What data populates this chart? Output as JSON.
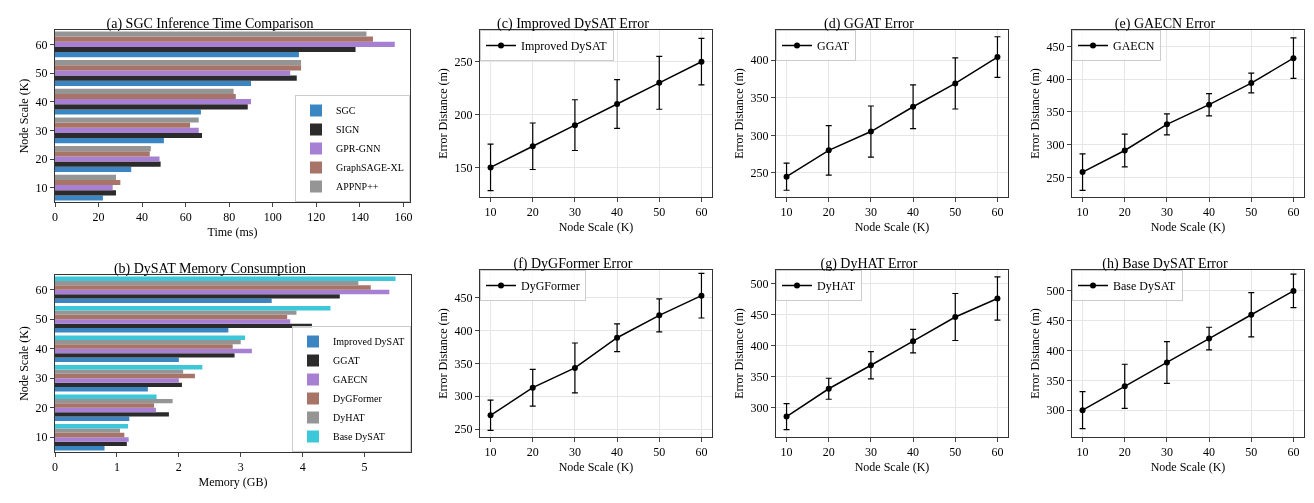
{
  "chart_data": [
    {
      "type": "bar",
      "orientation": "horizontal",
      "title": "(a) SGC Inference Time Comparison",
      "xlabel": "Time (ms)",
      "ylabel": "Node Scale (K)",
      "categories": [
        "60",
        "50",
        "40",
        "30",
        "20",
        "10"
      ],
      "xlim": [
        0,
        163
      ],
      "xticks": [
        0,
        20,
        40,
        60,
        80,
        100,
        120,
        140,
        160
      ],
      "legend": "bottom right",
      "grid": false,
      "series": [
        {
          "name": "SGC",
          "color": "#3b86c2",
          "values": [
            112,
            90,
            67,
            50,
            35,
            22
          ]
        },
        {
          "name": "SIGN",
          "color": "#2b2b2b",
          "values": [
            138,
            111,
            88.5,
            67.5,
            48.5,
            28
          ]
        },
        {
          "name": "GPR-GNN",
          "color": "#a77fd3",
          "values": [
            156,
            108,
            90,
            66,
            48,
            26.5
          ]
        },
        {
          "name": "GraphSAGE-XL",
          "color": "#a87468",
          "values": [
            146,
            113,
            83,
            62,
            43.5,
            30
          ]
        },
        {
          "name": "APPNP++",
          "color": "#959595",
          "values": [
            143,
            113,
            82,
            66,
            44,
            28
          ]
        }
      ]
    },
    {
      "type": "bar",
      "orientation": "horizontal",
      "title": "(b) DySAT Memory Consumption",
      "xlabel": "Memory (GB)",
      "ylabel": "Node Scale (K)",
      "categories": [
        "60",
        "50",
        "40",
        "30",
        "20",
        "10"
      ],
      "xlim": [
        0,
        5.75
      ],
      "xticks": [
        0,
        1,
        2,
        3,
        4,
        5
      ],
      "legend": "bottom right",
      "grid": false,
      "series": [
        {
          "name": "Improved DySAT",
          "color": "#3b86c2",
          "values": [
            3.5,
            2.8,
            2.0,
            1.5,
            1.2,
            0.8
          ]
        },
        {
          "name": "GGAT",
          "color": "#2b2b2b",
          "values": [
            4.6,
            4.15,
            2.9,
            2.05,
            1.84,
            1.16
          ]
        },
        {
          "name": "GAECN",
          "color": "#a77fd3",
          "values": [
            5.4,
            3.8,
            3.18,
            2.0,
            1.63,
            1.19
          ]
        },
        {
          "name": "DyGFormer",
          "color": "#a87468",
          "values": [
            5.1,
            3.75,
            2.87,
            2.26,
            1.6,
            1.12
          ]
        },
        {
          "name": "DyHAT",
          "color": "#959595",
          "values": [
            4.9,
            3.9,
            3.0,
            2.07,
            1.9,
            1.05
          ]
        },
        {
          "name": "Base DySAT",
          "color": "#3cc8d8",
          "values": [
            5.5,
            4.45,
            3.07,
            2.38,
            1.64,
            1.18
          ]
        }
      ]
    },
    {
      "type": "line",
      "title": "(c) Improved DySAT Error",
      "xlabel": "Node Scale (K)",
      "ylabel": "Error Distance (m)",
      "x": [
        10,
        20,
        30,
        40,
        50,
        60
      ],
      "xlim": [
        7.5,
        62.5
      ],
      "xticks": [
        10,
        20,
        30,
        40,
        50,
        60
      ],
      "ylim": [
        122,
        280
      ],
      "yticks": [
        150,
        200,
        250
      ],
      "grid": true,
      "legend": "top left",
      "marker": "circle",
      "line_style": "solid",
      "series": [
        {
          "name": "Improved DySAT",
          "color": "#000000",
          "values": [
            150,
            170,
            190,
            210,
            230,
            250
          ],
          "errors": [
            22,
            22,
            24,
            23,
            25,
            22
          ]
        }
      ]
    },
    {
      "type": "line",
      "title": "(d) GGAT Error",
      "xlabel": "Node Scale (K)",
      "ylabel": "Error Distance (m)",
      "x": [
        10,
        20,
        30,
        40,
        50,
        60
      ],
      "xlim": [
        7.5,
        62.5
      ],
      "xticks": [
        10,
        20,
        30,
        40,
        50,
        60
      ],
      "ylim": [
        218,
        440
      ],
      "yticks": [
        250,
        300,
        350,
        400
      ],
      "grid": true,
      "legend": "top left",
      "marker": "circle",
      "line_style": "solid",
      "series": [
        {
          "name": "GGAT",
          "color": "#000000",
          "values": [
            245,
            280,
            305,
            338,
            369,
            404
          ],
          "errors": [
            18,
            33,
            34,
            29,
            34,
            27
          ]
        }
      ]
    },
    {
      "type": "line",
      "title": "(e) GAECN Error",
      "xlabel": "Node Scale (K)",
      "ylabel": "Error Distance (m)",
      "x": [
        10,
        20,
        30,
        40,
        50,
        60
      ],
      "xlim": [
        7.5,
        62.5
      ],
      "xticks": [
        10,
        20,
        30,
        40,
        50,
        60
      ],
      "ylim": [
        220,
        475
      ],
      "yticks": [
        250,
        300,
        350,
        400,
        450
      ],
      "grid": true,
      "legend": "top left",
      "marker": "circle",
      "line_style": "solid",
      "series": [
        {
          "name": "GAECN",
          "color": "#000000",
          "values": [
            258,
            291,
            331,
            361,
            394,
            432
          ],
          "errors": [
            28,
            25,
            16,
            17,
            15,
            31
          ]
        }
      ]
    },
    {
      "type": "line",
      "title": "(f) DyGFormer Error",
      "xlabel": "Node Scale (K)",
      "ylabel": "Error Distance (m)",
      "x": [
        10,
        20,
        30,
        40,
        50,
        60
      ],
      "xlim": [
        7.5,
        62.5
      ],
      "xticks": [
        10,
        20,
        30,
        40,
        50,
        60
      ],
      "ylim": [
        238,
        492
      ],
      "yticks": [
        250,
        300,
        350,
        400,
        450
      ],
      "grid": true,
      "legend": "top left",
      "marker": "circle",
      "line_style": "solid",
      "series": [
        {
          "name": "DyGFormer",
          "color": "#000000",
          "values": [
            271,
            313,
            343,
            389,
            423,
            453
          ],
          "errors": [
            23,
            28,
            38,
            21,
            25,
            34
          ]
        }
      ]
    },
    {
      "type": "line",
      "title": "(g) DyHAT Error",
      "xlabel": "Node Scale (K)",
      "ylabel": "Error Distance (m)",
      "x": [
        10,
        20,
        30,
        40,
        50,
        60
      ],
      "xlim": [
        7.5,
        62.5
      ],
      "xticks": [
        10,
        20,
        30,
        40,
        50,
        60
      ],
      "ylim": [
        252,
        522
      ],
      "yticks": [
        300,
        350,
        400,
        450,
        500
      ],
      "grid": true,
      "legend": "top left",
      "marker": "circle",
      "line_style": "solid",
      "series": [
        {
          "name": "DyHAT",
          "color": "#000000",
          "values": [
            285,
            330,
            368,
            407,
            446,
            476
          ],
          "errors": [
            21,
            17,
            22,
            19,
            38,
            35
          ]
        }
      ]
    },
    {
      "type": "line",
      "title": "(h) Base DySAT Error",
      "xlabel": "Node Scale (K)",
      "ylabel": "Error Distance (m)",
      "x": [
        10,
        20,
        30,
        40,
        50,
        60
      ],
      "xlim": [
        7.5,
        62.5
      ],
      "xticks": [
        10,
        20,
        30,
        40,
        50,
        60
      ],
      "ylim": [
        255,
        535
      ],
      "yticks": [
        300,
        350,
        400,
        450,
        500
      ],
      "grid": true,
      "legend": "top left",
      "marker": "circle",
      "line_style": "solid",
      "series": [
        {
          "name": "Base DySAT",
          "color": "#000000",
          "values": [
            300,
            340,
            380,
            420,
            460,
            500
          ],
          "errors": [
            31,
            37,
            35,
            19,
            37,
            28
          ]
        }
      ]
    }
  ]
}
